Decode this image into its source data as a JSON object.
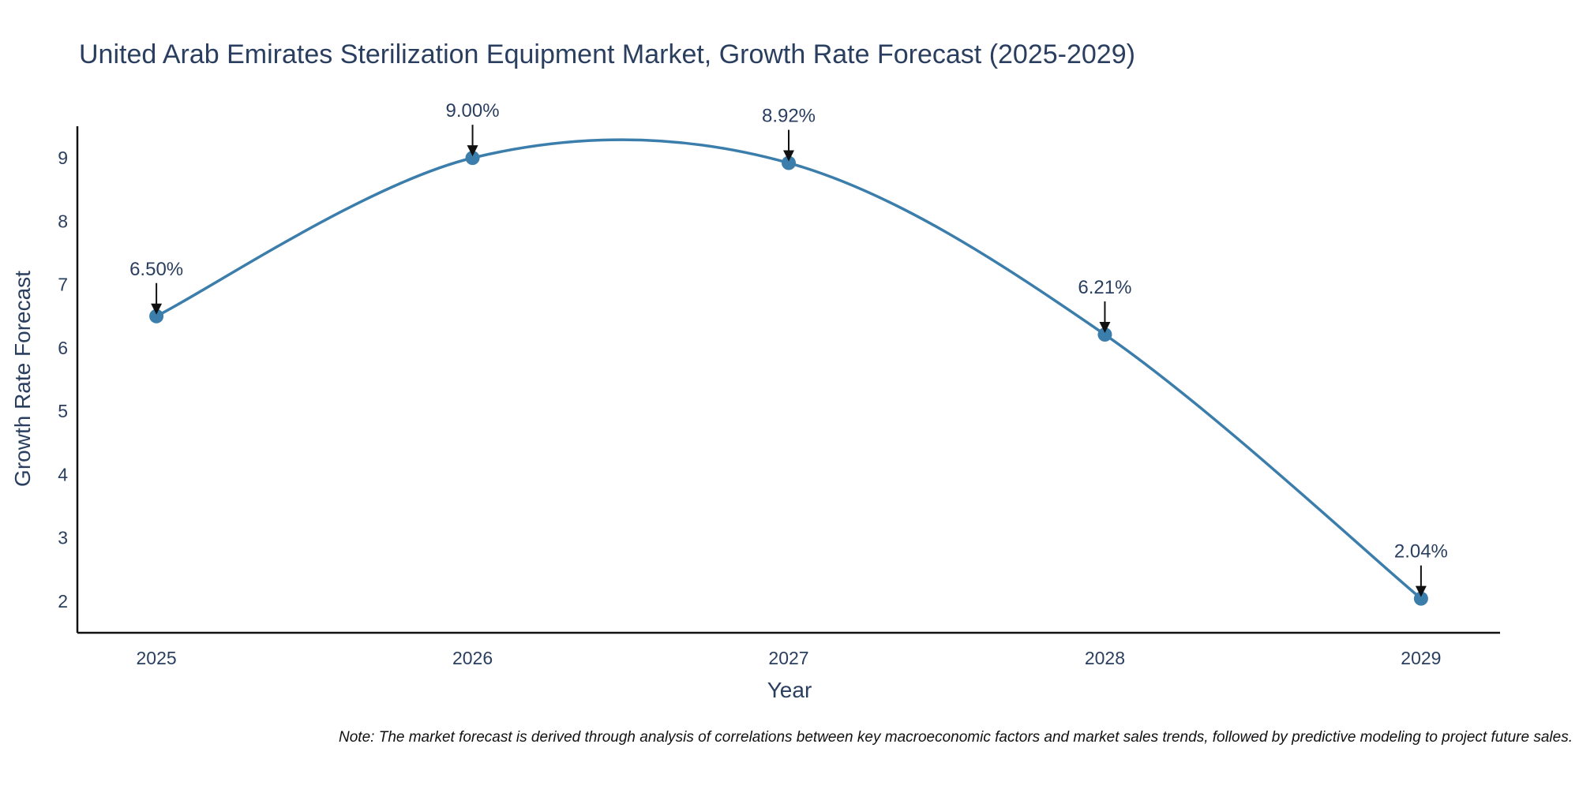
{
  "chart_data": {
    "type": "line",
    "title": "United Arab Emirates Sterilization Equipment Market, Growth Rate Forecast (2025-2029)",
    "xlabel": "Year",
    "ylabel": "Growth Rate Forecast",
    "categories": [
      "2025",
      "2026",
      "2027",
      "2028",
      "2029"
    ],
    "series": [
      {
        "name": "Growth Rate Forecast",
        "values": [
          6.5,
          9.0,
          8.92,
          6.21,
          2.04
        ],
        "labels": [
          "6.50%",
          "9.00%",
          "8.92%",
          "6.21%",
          "2.04%"
        ]
      }
    ],
    "yticks": [
      "2",
      "3",
      "4",
      "5",
      "6",
      "7",
      "8",
      "9"
    ],
    "ylim": [
      1.5,
      9.5
    ],
    "xlim": [
      2024.75,
      2029.25
    ],
    "grid": false,
    "line_color": "#3b7dab",
    "marker_color": "#3b7dab",
    "note": "Note: The market forecast is derived through analysis of correlations between key macroeconomic factors and market sales trends, followed by predictive modeling to project future sales."
  }
}
